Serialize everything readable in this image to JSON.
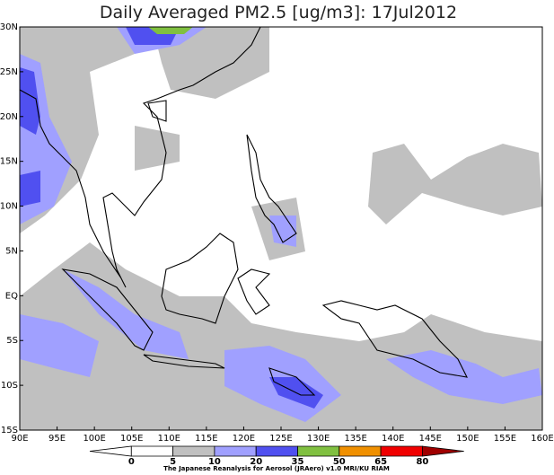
{
  "title": "Daily Averaged PM2.5 [ug/m3]: 17Jul2012",
  "lat_labels": [
    "30N",
    "25N",
    "20N",
    "15N",
    "10N",
    "5N",
    "EQ",
    "5S",
    "10S",
    "15S"
  ],
  "lon_labels": [
    "90E",
    "95E",
    "100E",
    "105E",
    "110E",
    "115E",
    "120E",
    "125E",
    "130E",
    "135E",
    "140E",
    "145E",
    "150E",
    "155E",
    "160E"
  ],
  "colorbar": {
    "labels": [
      0,
      5,
      10,
      20,
      35,
      50,
      65,
      80
    ],
    "colors": [
      "#ffffff",
      "#ffffff",
      "#c0c0c0",
      "#a0a0ff",
      "#5050f0",
      "#80c040",
      "#f09000",
      "#f00000",
      "#a00000"
    ]
  },
  "credit": "The Japanese Reanalysis for Aerosol (JRAero) v1.0 MRI/KU RIAM"
}
